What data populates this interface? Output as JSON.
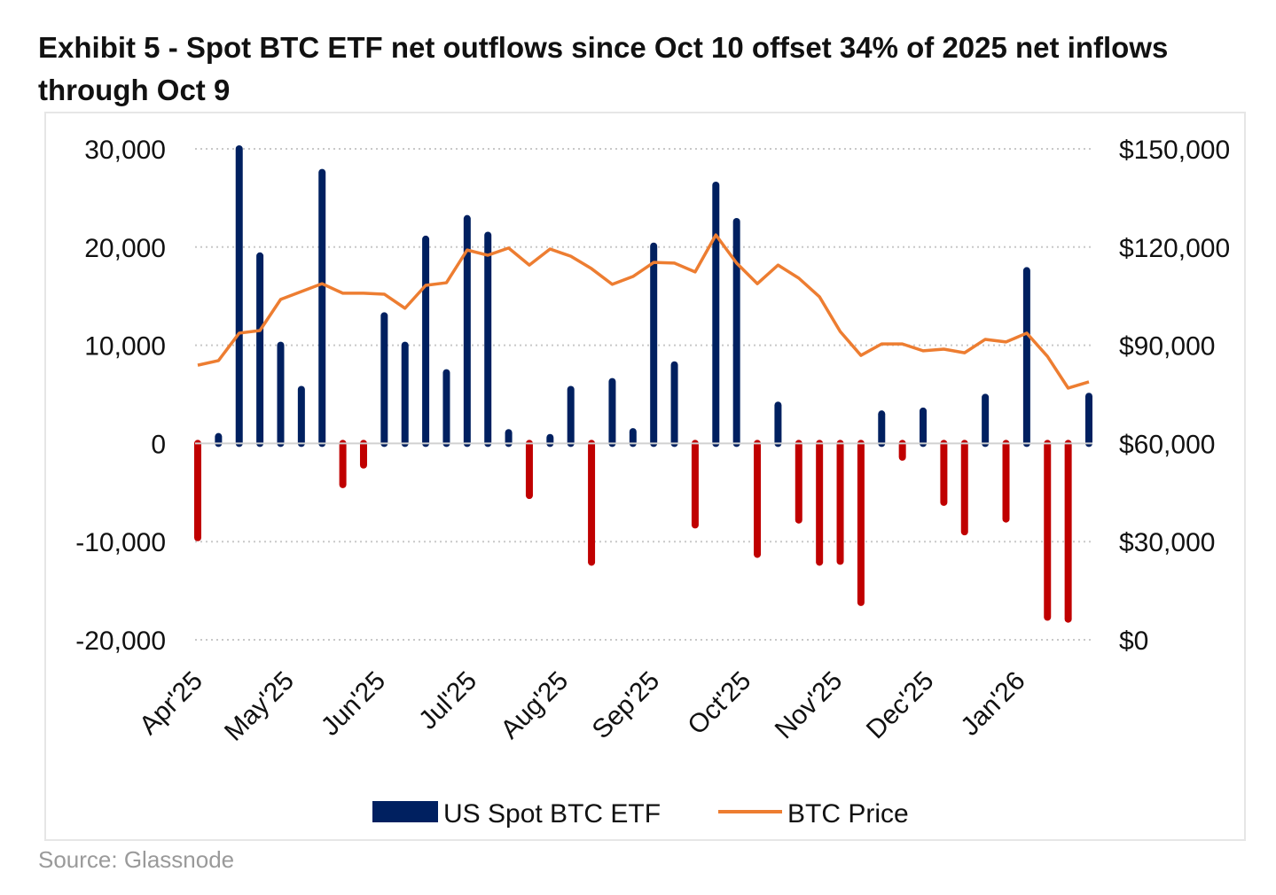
{
  "title": "Exhibit 5 - Spot BTC ETF net outflows since Oct 10 offset 34% of 2025 net inflows through Oct 9",
  "source": "Source: Glassnode",
  "colors": {
    "inflow": "#002060",
    "outflow": "#C00000",
    "price": "#ED7D31",
    "grid": "#c8c8c8"
  },
  "chart_data": {
    "type": "bar+line",
    "title": "Exhibit 5 - Spot BTC ETF net outflows since Oct 10 offset 34% of 2025 net inflows through Oct 9",
    "grid": "horizontal dotted",
    "legend_placement": "bottom",
    "y_left": {
      "range": [
        -20000,
        30000
      ],
      "ticks": [
        30000,
        20000,
        10000,
        0,
        -10000,
        -20000
      ],
      "tick_labels": [
        "30,000",
        "20,000",
        "10,000",
        "0",
        "-10,000",
        "-20,000"
      ]
    },
    "y_right": {
      "range": [
        0,
        150000
      ],
      "ticks": [
        150000,
        120000,
        90000,
        60000,
        30000,
        0
      ],
      "tick_labels": [
        "$150,000",
        "$120,000",
        "$90,000",
        "$60,000",
        "$30,000",
        "$0"
      ]
    },
    "x_tick_labels": [
      "Apr'25",
      "May'25",
      "Jun'25",
      "Jul'25",
      "Aug'25",
      "Sep'25",
      "Oct'25",
      "Nov'25",
      "Dec'25",
      "Jan'26"
    ],
    "series": [
      {
        "name": "US Spot BTC ETF",
        "type": "bar",
        "axis": "left",
        "values": [
          -9600,
          700,
          30000,
          19100,
          10000,
          5500,
          27600,
          -4200,
          -2200,
          13000,
          10000,
          20800,
          7200,
          22900,
          21200,
          1100,
          -5300,
          600,
          5500,
          -12100,
          6300,
          1200,
          20100,
          8000,
          -8300,
          26300,
          22600,
          -11300,
          3900,
          -7800,
          -12100,
          -12000,
          -16200,
          3000,
          -1400,
          3300,
          -6000,
          -9000,
          4700,
          -7700,
          17600,
          -17700,
          -17900,
          4800
        ]
      },
      {
        "name": "BTC Price",
        "type": "line",
        "axis": "right",
        "values": [
          83900,
          85300,
          93700,
          94500,
          104000,
          106400,
          108800,
          105900,
          105900,
          105600,
          101300,
          108300,
          109100,
          119100,
          117500,
          119700,
          114500,
          119400,
          117200,
          113400,
          108600,
          111000,
          115300,
          115100,
          112400,
          123700,
          115100,
          108800,
          114500,
          110500,
          104800,
          94200,
          86900,
          90400,
          90400,
          88300,
          88800,
          87700,
          91800,
          91000,
          93700,
          86600,
          76900,
          78800
        ]
      }
    ]
  }
}
